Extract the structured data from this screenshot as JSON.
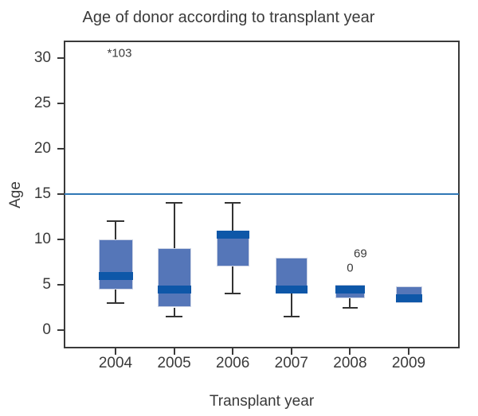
{
  "chart_data": {
    "type": "boxplot",
    "title": "Age of donor according to transplant year",
    "xlabel": "Transplant year",
    "ylabel": "Age",
    "categories": [
      "2004",
      "2005",
      "2006",
      "2007",
      "2008",
      "2009"
    ],
    "yticks": [
      0,
      5,
      10,
      15,
      20,
      25,
      30
    ],
    "ylim": [
      -2,
      32
    ],
    "grid": false,
    "legend": "none",
    "reference_line": {
      "y": 15
    },
    "series": [
      {
        "category": "2004",
        "min": 3,
        "q1": 4.5,
        "median": 6,
        "q3": 10,
        "max": 12
      },
      {
        "category": "2005",
        "min": 1.5,
        "q1": 2.5,
        "median": 4.5,
        "q3": 9,
        "max": 14
      },
      {
        "category": "2006",
        "min": 4,
        "q1": 7,
        "median": 11,
        "q3": 11,
        "max": 14
      },
      {
        "category": "2007",
        "min": 1.5,
        "q1": 4,
        "median": 4.5,
        "q3": 8,
        "max": 8
      },
      {
        "category": "2008",
        "min": 2.5,
        "q1": 3.5,
        "median": 4.5,
        "q3": 5,
        "max": 5
      },
      {
        "category": "2009",
        "min": 3,
        "q1": 3,
        "median": 3.5,
        "q3": 4.8,
        "max": 4.8
      }
    ],
    "annotations": [
      {
        "text": "*103",
        "category": "2004",
        "age": 30.5,
        "dx": 5
      },
      {
        "text": "69",
        "category": "2008",
        "age": 8.4,
        "dx": 13
      },
      {
        "text": "0",
        "category": "2008",
        "age": 6.8,
        "dx": 0
      }
    ],
    "colors": {
      "box_fill": "#5576b8",
      "box_edge": "#cdd4e5",
      "median": "#0e57a8",
      "whisker": "#333333",
      "frame": "#3a3a3a",
      "text": "#3a3a3a",
      "reference_line": "#2f77b5",
      "background": "#ffffff"
    }
  }
}
